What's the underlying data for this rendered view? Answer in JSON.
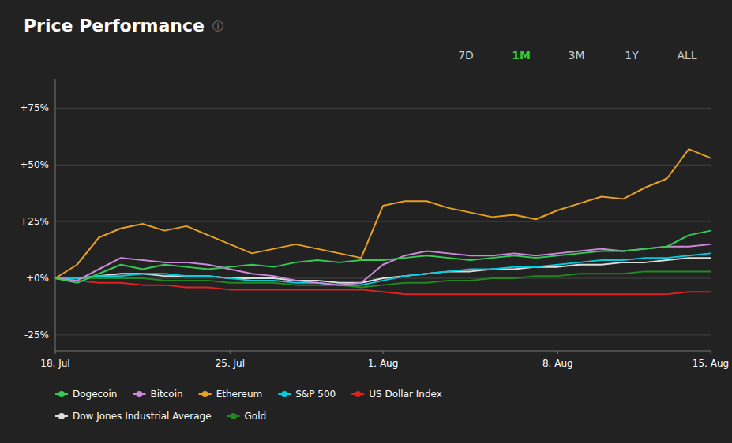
{
  "chart_data": {
    "type": "line",
    "title": "Price Performance",
    "categories": [
      "18. Jul",
      null,
      null,
      null,
      null,
      null,
      null,
      null,
      "25. Jul",
      null,
      null,
      null,
      null,
      null,
      null,
      "1. Aug",
      null,
      null,
      null,
      null,
      null,
      null,
      null,
      "8. Aug",
      null,
      null,
      null,
      null,
      null,
      null,
      "15. Aug"
    ],
    "series": [
      {
        "name": "Dogecoin",
        "color": "#33cc55",
        "values": [
          0,
          -2,
          2,
          6,
          4,
          6,
          5,
          4,
          5,
          6,
          5,
          7,
          8,
          7,
          8,
          8,
          9,
          10,
          9,
          8,
          9,
          10,
          9,
          10,
          11,
          12,
          12,
          13,
          14,
          19,
          21
        ]
      },
      {
        "name": "Bitcoin",
        "color": "#cc88dd",
        "values": [
          0,
          -1,
          4,
          9,
          8,
          7,
          7,
          6,
          4,
          2,
          1,
          -1,
          -2,
          -3,
          -2,
          6,
          10,
          12,
          11,
          10,
          10,
          11,
          10,
          11,
          12,
          13,
          12,
          13,
          14,
          14,
          15
        ]
      },
      {
        "name": "Ethereum",
        "color": "#e8a020",
        "values": [
          0,
          6,
          18,
          22,
          24,
          21,
          23,
          19,
          15,
          11,
          13,
          15,
          13,
          11,
          9,
          32,
          34,
          34,
          31,
          29,
          27,
          28,
          26,
          30,
          33,
          36,
          35,
          40,
          44,
          57,
          53
        ]
      },
      {
        "name": "S&P 500",
        "color": "#00ccdd",
        "values": [
          0,
          0,
          1,
          1,
          2,
          2,
          1,
          1,
          0,
          -1,
          -1,
          -2,
          -2,
          -3,
          -3,
          -1,
          1,
          2,
          3,
          4,
          4,
          5,
          5,
          6,
          7,
          8,
          8,
          9,
          9,
          10,
          11
        ]
      },
      {
        "name": "US Dollar Index",
        "color": "#dd2222",
        "values": [
          0,
          -1,
          -2,
          -2,
          -3,
          -3,
          -4,
          -4,
          -5,
          -5,
          -5,
          -5,
          -5,
          -5,
          -5,
          -6,
          -7,
          -7,
          -7,
          -7,
          -7,
          -7,
          -7,
          -7,
          -7,
          -7,
          -7,
          -7,
          -7,
          -6,
          -6
        ]
      },
      {
        "name": "Dow Jones Industrial Average",
        "color": "#dddddd",
        "values": [
          0,
          0,
          1,
          2,
          2,
          1,
          1,
          1,
          0,
          0,
          0,
          -1,
          -1,
          -2,
          -2,
          0,
          1,
          2,
          3,
          3,
          4,
          4,
          5,
          5,
          6,
          6,
          7,
          7,
          8,
          9,
          9
        ]
      },
      {
        "name": "Gold",
        "color": "#228822",
        "values": [
          0,
          0,
          0,
          0,
          0,
          -1,
          -1,
          -1,
          -2,
          -2,
          -2,
          -3,
          -3,
          -3,
          -4,
          -3,
          -2,
          -2,
          -1,
          -1,
          0,
          0,
          1,
          1,
          2,
          2,
          2,
          3,
          3,
          3,
          3
        ]
      }
    ],
    "ylim": [
      -32,
      88
    ],
    "yticks": [
      {
        "value": -25,
        "label": "-25%"
      },
      {
        "value": 0,
        "label": "+0%"
      },
      {
        "value": 25,
        "label": "+25%"
      },
      {
        "value": 50,
        "label": "+50%"
      },
      {
        "value": 75,
        "label": "+75%"
      }
    ],
    "grid": true,
    "legend": "bottom",
    "annotations": [
      {
        "text": "ⓘ",
        "color": "#888888"
      },
      {
        "text": "7D",
        "color": "#cccccc"
      },
      {
        "text": "1M",
        "color": "#33cc33"
      },
      {
        "text": "3M",
        "color": "#cccccc"
      },
      {
        "text": "1Y",
        "color": "#cccccc"
      },
      {
        "text": "ALL",
        "color": "#cccccc"
      }
    ]
  }
}
